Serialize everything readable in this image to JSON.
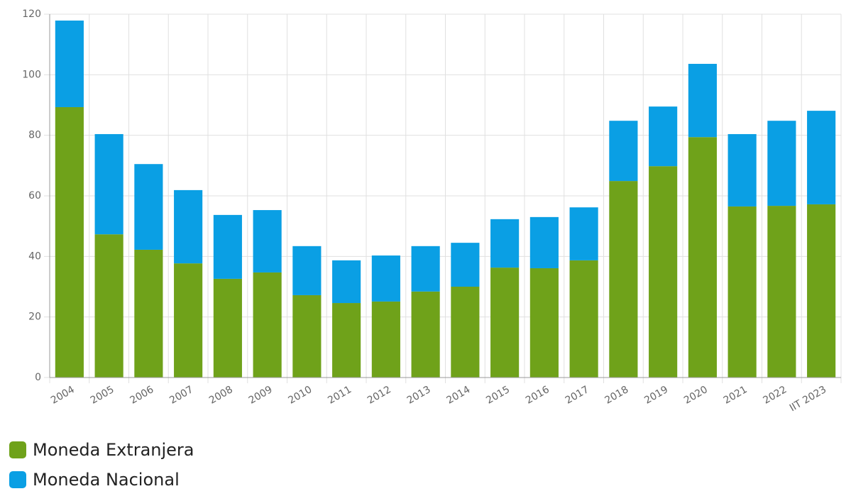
{
  "chart_data": {
    "type": "stacked_bar",
    "categories": [
      "2004",
      "2005",
      "2006",
      "2007",
      "2008",
      "2009",
      "2010",
      "2011",
      "2012",
      "2013",
      "2014",
      "2015",
      "2016",
      "2017",
      "2018",
      "2019",
      "2020",
      "2021",
      "2022",
      "IIT 2023"
    ],
    "series": [
      {
        "name": "Moneda Extranjera",
        "color": "#6fa21a",
        "values": [
          89.3,
          47.3,
          42.2,
          37.7,
          32.6,
          34.7,
          27.2,
          24.6,
          25.1,
          28.4,
          30.0,
          36.3,
          36.1,
          38.7,
          64.9,
          69.8,
          79.4,
          56.5,
          56.7,
          57.2
        ]
      },
      {
        "name": "Moneda Nacional",
        "color": "#0a9fe4",
        "values": [
          28.6,
          33.1,
          28.3,
          24.2,
          21.1,
          20.6,
          16.2,
          14.1,
          15.2,
          15.0,
          14.5,
          16.0,
          16.9,
          17.5,
          19.9,
          19.7,
          24.2,
          23.9,
          28.1,
          30.9
        ]
      }
    ],
    "ylim": [
      0,
      120
    ],
    "yticks": [
      0,
      20,
      40,
      60,
      80,
      100,
      120
    ],
    "grid": true
  }
}
